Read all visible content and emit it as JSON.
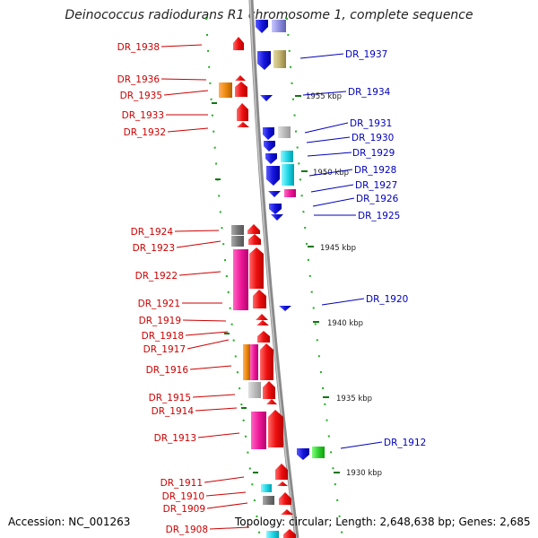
{
  "title": "Deinococcus radiodurans R1 chromosome 1, complete sequence",
  "footer": {
    "accession": "Accession: NC_001263",
    "topology": "Topology: circular; Length: 2,648,638 bp; Genes: 2,685"
  },
  "colors": {
    "reverse_gene": "#ee1111",
    "forward_gene": "#1111dd",
    "label_red": "#cc0000",
    "label_blue": "#0000bb",
    "backbone": "#888888",
    "tick": "#117711"
  },
  "scale_labels": [
    "1955 kbp",
    "1950 kbp",
    "1945 kbp",
    "1940 kbp",
    "1935 kbp",
    "1930 kbp"
  ],
  "genes_left": [
    "DR_1938",
    "DR_1936",
    "DR_1935",
    "DR_1933",
    "DR_1932",
    "DR_1924",
    "DR_1923",
    "DR_1922",
    "DR_1921",
    "DR_1919",
    "DR_1918",
    "DR_1917",
    "DR_1916",
    "DR_1915",
    "DR_1914",
    "DR_1913",
    "DR_1911",
    "DR_1910",
    "DR_1909",
    "DR_1908"
  ],
  "genes_right": [
    "DR_1937",
    "DR_1934",
    "DR_1931",
    "DR_1930",
    "DR_1929",
    "DR_1928",
    "DR_1927",
    "DR_1926",
    "DR_1925",
    "DR_1920",
    "DR_1912"
  ]
}
